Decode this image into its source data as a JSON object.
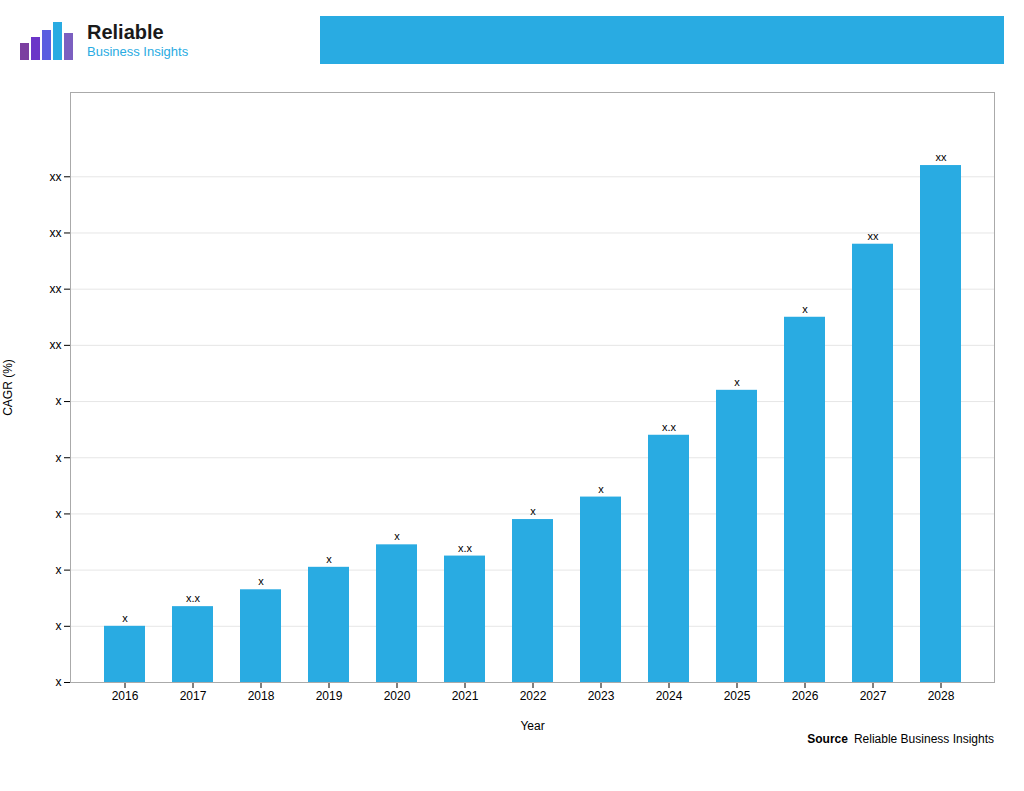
{
  "chart_data": {
    "type": "bar",
    "categories": [
      "2016",
      "2017",
      "2018",
      "2019",
      "2020",
      "2021",
      "2022",
      "2023",
      "2024",
      "2025",
      "2026",
      "2027",
      "2028"
    ],
    "values": [
      1.0,
      1.35,
      1.65,
      2.05,
      2.45,
      2.25,
      2.9,
      3.3,
      4.4,
      5.2,
      6.5,
      7.8,
      9.2
    ],
    "value_labels": [
      "x",
      "x.x",
      "x",
      "x",
      "x",
      "x.x",
      "x",
      "x",
      "x.x",
      "x",
      "x",
      "xx",
      "xx"
    ],
    "data_labels": true,
    "color": "#29ABE2",
    "xlabel": "Year",
    "ylabel": "CAGR (%)",
    "ylim": [
      0,
      10.5
    ],
    "yticks": [
      {
        "value": 0,
        "label": "x"
      },
      {
        "value": 1,
        "label": "x"
      },
      {
        "value": 2,
        "label": "x"
      },
      {
        "value": 3,
        "label": "x"
      },
      {
        "value": 4,
        "label": "x"
      },
      {
        "value": 5,
        "label": "x"
      },
      {
        "value": 6,
        "label": "xx"
      },
      {
        "value": 7,
        "label": "xx"
      },
      {
        "value": 8,
        "label": "xx"
      },
      {
        "value": 9,
        "label": "xx"
      }
    ],
    "grid": true,
    "annotations": [
      "Reliable",
      "Business Insights",
      "Source",
      "Reliable Business Insights"
    ]
  }
}
